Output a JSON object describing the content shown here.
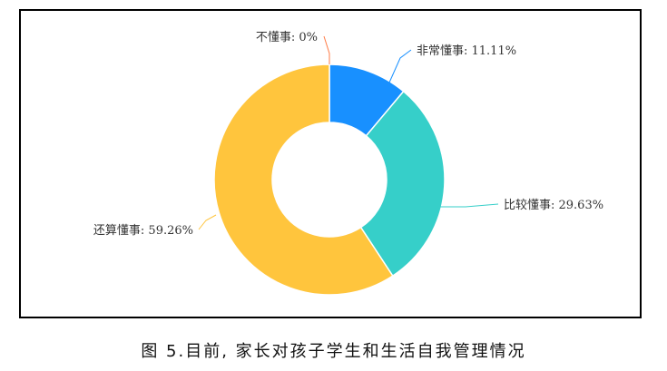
{
  "chart_data": {
    "type": "pie",
    "style": "donut",
    "categories": [
      "非常懂事",
      "比较懂事",
      "还算懂事",
      "不懂事"
    ],
    "values": [
      11.11,
      29.63,
      59.26,
      0
    ],
    "colors": [
      "#1890ff",
      "#36cfc9",
      "#ffc53d",
      "#ff7a45"
    ],
    "labels": [
      "非常懂事: 11.11%",
      "比较懂事: 29.63%",
      "还算懂事: 59.26%",
      "不懂事: 0%"
    ],
    "legend": "none"
  },
  "caption": "图 5.目前, 家长对孩子学生和生活自我管理情况"
}
